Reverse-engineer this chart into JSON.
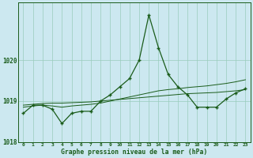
{
  "background_color": "#cce8f0",
  "grid_color": "#99ccbb",
  "line_color": "#1a5c1a",
  "x_values": [
    0,
    1,
    2,
    3,
    4,
    5,
    6,
    7,
    8,
    9,
    10,
    11,
    12,
    13,
    14,
    15,
    16,
    17,
    18,
    19,
    20,
    21,
    22,
    23
  ],
  "y_main": [
    1018.7,
    1018.9,
    1018.9,
    1018.8,
    1018.45,
    1018.7,
    1018.75,
    1018.75,
    1019.0,
    1019.15,
    1019.35,
    1019.55,
    1020.0,
    1021.1,
    1020.3,
    1019.65,
    1019.35,
    1019.15,
    1018.85,
    1018.85,
    1018.85,
    1019.05,
    1019.2,
    1019.3
  ],
  "y_line2": [
    1018.85,
    1018.88,
    1018.9,
    1018.88,
    1018.85,
    1018.88,
    1018.9,
    1018.92,
    1018.95,
    1019.0,
    1019.05,
    1019.1,
    1019.15,
    1019.2,
    1019.25,
    1019.28,
    1019.3,
    1019.33,
    1019.35,
    1019.37,
    1019.4,
    1019.43,
    1019.47,
    1019.52
  ],
  "y_line3": [
    1018.9,
    1018.92,
    1018.94,
    1018.95,
    1018.95,
    1018.96,
    1018.97,
    1018.98,
    1019.0,
    1019.02,
    1019.04,
    1019.06,
    1019.08,
    1019.1,
    1019.12,
    1019.14,
    1019.16,
    1019.18,
    1019.19,
    1019.2,
    1019.21,
    1019.23,
    1019.25,
    1019.28
  ],
  "ylim": [
    1018.3,
    1021.4
  ],
  "yticks": [
    1018,
    1019,
    1020
  ],
  "xlabel": "Graphe pression niveau de la mer (hPa)",
  "xticks": [
    0,
    1,
    2,
    3,
    4,
    5,
    6,
    7,
    8,
    9,
    10,
    11,
    12,
    13,
    14,
    15,
    16,
    17,
    18,
    19,
    20,
    21,
    22,
    23
  ]
}
